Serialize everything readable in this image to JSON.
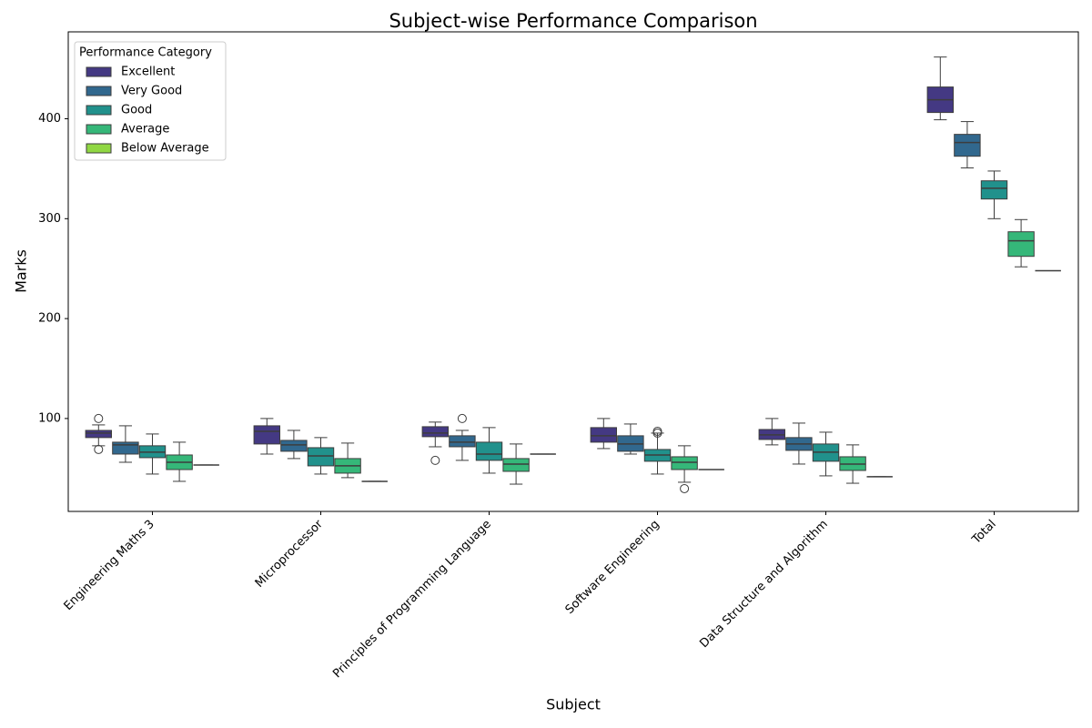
{
  "chart_data": {
    "type": "box",
    "title": "Subject-wise Performance Comparison",
    "x_label": "Subject",
    "y_label": "Marks",
    "categories": [
      "Engineering Maths 3",
      "Microprocessor",
      "Principles of Programming Language",
      "Software Engineering",
      "Data Structure and Algorithm",
      "Total"
    ],
    "ylim": [
      7,
      487
    ],
    "yticks": [
      100,
      200,
      300,
      400
    ],
    "legend_title": "Performance Category",
    "legend_position": "upper left",
    "series": [
      {
        "name": "Excellent",
        "color": "#443983",
        "boxes": [
          {
            "min": 72.7,
            "q1": 80.9,
            "median": 85.4,
            "q3": 88.1,
            "max": 93.6,
            "outliers": [
              100,
              69
            ]
          },
          {
            "min": 64.4,
            "q1": 74.5,
            "median": 87.2,
            "q3": 92.7,
            "max": 100
          },
          {
            "min": 71.7,
            "q1": 81.8,
            "median": 85.4,
            "q3": 91.8,
            "max": 96.4,
            "outliers": [
              58.1
            ]
          },
          {
            "min": 69.9,
            "q1": 76.3,
            "median": 82.7,
            "q3": 90.9,
            "max": 100
          },
          {
            "min": 73.6,
            "q1": 79,
            "median": 83.6,
            "q3": 89,
            "max": 100
          },
          {
            "min": 399,
            "q1": 406.3,
            "median": 419,
            "q3": 431.8,
            "max": 461.8
          }
        ]
      },
      {
        "name": "Very Good",
        "color": "#31688e",
        "boxes": [
          {
            "min": 56.2,
            "q1": 64.4,
            "median": 73.6,
            "q3": 76.3,
            "max": 92.7
          },
          {
            "min": 59.9,
            "q1": 67.2,
            "median": 73.6,
            "q3": 78.1,
            "max": 88.1
          },
          {
            "min": 58.1,
            "q1": 71.7,
            "median": 76.3,
            "q3": 82.7,
            "max": 88.1,
            "outliers": [
              100
            ]
          },
          {
            "min": 64.4,
            "q1": 67.2,
            "median": 74.5,
            "q3": 82.7,
            "max": 94.5
          },
          {
            "min": 54.4,
            "q1": 68.1,
            "median": 74.5,
            "q3": 80.9,
            "max": 95.4
          },
          {
            "min": 350.8,
            "q1": 362.5,
            "median": 376.2,
            "q3": 384.4,
            "max": 397.2
          }
        ]
      },
      {
        "name": "Good",
        "color": "#21918c",
        "boxes": [
          {
            "min": 44.4,
            "q1": 60.8,
            "median": 66.3,
            "q3": 72.7,
            "max": 84.5
          },
          {
            "min": 44.4,
            "q1": 52.6,
            "median": 62.6,
            "q3": 70.8,
            "max": 80.9
          },
          {
            "min": 45.3,
            "q1": 58.1,
            "median": 64.4,
            "q3": 76.3,
            "max": 90.9
          },
          {
            "min": 44.4,
            "q1": 57.2,
            "median": 63.5,
            "q3": 69,
            "max": 85.4,
            "outliers": [
              87.2,
              85.4
            ]
          },
          {
            "min": 42.6,
            "q1": 57.2,
            "median": 66.3,
            "q3": 74.5,
            "max": 86.3
          },
          {
            "min": 300,
            "q1": 319.7,
            "median": 330.5,
            "q3": 337.9,
            "max": 347.7
          }
        ]
      },
      {
        "name": "Average",
        "color": "#35b779",
        "boxes": [
          {
            "min": 37.1,
            "q1": 48.9,
            "median": 56.2,
            "q3": 63.5,
            "max": 76.3
          },
          {
            "min": 40.8,
            "q1": 45.3,
            "median": 52.6,
            "q3": 59.9,
            "max": 75.4
          },
          {
            "min": 34.3,
            "q1": 47.1,
            "median": 54.4,
            "q3": 59.9,
            "max": 74.5
          },
          {
            "min": 36.2,
            "q1": 48.9,
            "median": 56.2,
            "q3": 61.7,
            "max": 72.7,
            "outliers": [
              29.8
            ]
          },
          {
            "min": 35.2,
            "q1": 48,
            "median": 54.4,
            "q3": 61.7,
            "max": 73.6
          },
          {
            "min": 251.8,
            "q1": 262.3,
            "median": 277.8,
            "q3": 286.9,
            "max": 299.1
          }
        ]
      },
      {
        "name": "Below Average",
        "color": "#90d743",
        "boxes": [
          {
            "min": 53.5,
            "q1": 53.5,
            "median": 53.5,
            "q3": 53.5,
            "max": 53.5
          },
          {
            "min": 37.1,
            "q1": 37.1,
            "median": 37.1,
            "q3": 37.1,
            "max": 37.1
          },
          {
            "min": 64.4,
            "q1": 64.4,
            "median": 64.4,
            "q3": 64.4,
            "max": 64.4
          },
          {
            "min": 48.9,
            "q1": 48.9,
            "median": 48.9,
            "q3": 48.9,
            "max": 48.9
          },
          {
            "min": 41.7,
            "q1": 41.7,
            "median": 41.7,
            "q3": 41.7,
            "max": 41.7
          },
          {
            "min": 247.9,
            "q1": 247.9,
            "median": 247.9,
            "q3": 247.9,
            "max": 247.9
          }
        ]
      }
    ]
  }
}
